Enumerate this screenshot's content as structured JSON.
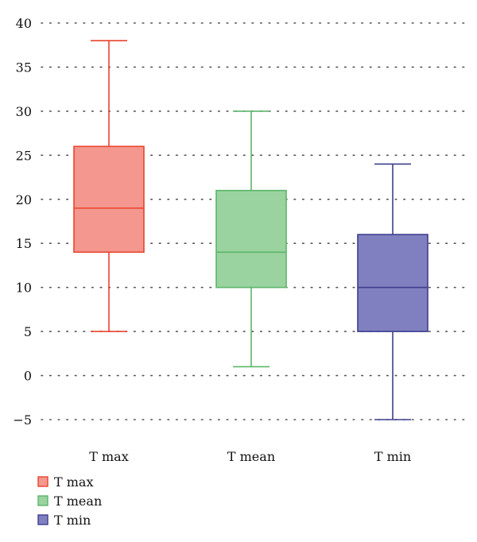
{
  "chart_data": {
    "type": "box",
    "ylim": [
      -5,
      40
    ],
    "yticks": [
      {
        "value": 40,
        "label": "40"
      },
      {
        "value": 35,
        "label": "35"
      },
      {
        "value": 30,
        "label": "30"
      },
      {
        "value": 25,
        "label": "25"
      },
      {
        "value": 20,
        "label": "20"
      },
      {
        "value": 15,
        "label": "15"
      },
      {
        "value": 10,
        "label": "10"
      },
      {
        "value": 5,
        "label": "5"
      },
      {
        "value": 0,
        "label": "0"
      },
      {
        "value": -5,
        "label": "−5"
      }
    ],
    "grid": true,
    "legend_position": "bottom-left",
    "categories": [
      "T max",
      "T mean",
      "T min"
    ],
    "series": [
      {
        "name": "T max",
        "min": 5,
        "q1": 14,
        "median": 19,
        "q3": 26,
        "max": 38,
        "fill": "#f4978e",
        "stroke": "#e8452f"
      },
      {
        "name": "T mean",
        "min": 1,
        "q1": 10,
        "median": 14,
        "q3": 21,
        "max": 30,
        "fill": "#9ad3a0",
        "stroke": "#5cb669"
      },
      {
        "name": "T min",
        "min": -5,
        "q1": 5,
        "median": 10,
        "q3": 16,
        "max": 24,
        "fill": "#8080c0",
        "stroke": "#3e3e8e"
      }
    ]
  }
}
